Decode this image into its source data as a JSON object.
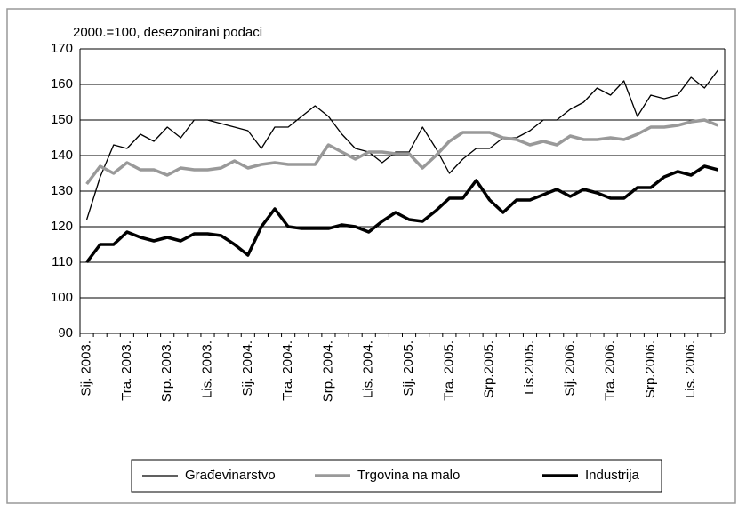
{
  "chart_data": {
    "type": "line",
    "subtitle": "2000.=100, desezonirani podaci",
    "categories": [
      "Sij. 2003.",
      null,
      null,
      "Tra. 2003.",
      null,
      null,
      "Srp. 2003.",
      null,
      null,
      "Lis. 2003.",
      null,
      null,
      "Sij. 2004.",
      null,
      null,
      "Tra. 2004.",
      null,
      null,
      "Srp. 2004.",
      null,
      null,
      "Lis. 2004.",
      null,
      null,
      "Sij. 2005.",
      null,
      null,
      "Tra. 2005.",
      null,
      null,
      "Srp.2005.",
      null,
      null,
      "Lis.2005.",
      null,
      null,
      "Sij. 2006.",
      null,
      null,
      "Tra. 2006.",
      null,
      null,
      "Srp.2006.",
      null,
      null,
      "Lis. 2006.",
      null,
      null
    ],
    "series": [
      {
        "name": "Građevinarstvo",
        "color": "#000000",
        "width": 1.3,
        "values": [
          122,
          134,
          143,
          142,
          146,
          144,
          148,
          145,
          150,
          150,
          149,
          148,
          147,
          142,
          148,
          148,
          151,
          154,
          151,
          146,
          142,
          141,
          138,
          141,
          141,
          148,
          142,
          135,
          139,
          142,
          142,
          145,
          145,
          147,
          150,
          150,
          153,
          155,
          159,
          157,
          161,
          151,
          157,
          156,
          157,
          162,
          159,
          164
        ]
      },
      {
        "name": "Trgovina na malo",
        "color": "#999999",
        "width": 3.5,
        "values": [
          132,
          137,
          135,
          138,
          136,
          136,
          134.5,
          136.5,
          136,
          136,
          136.5,
          138.5,
          136.5,
          137.5,
          138,
          137.5,
          137.5,
          137.5,
          143,
          141,
          139,
          141,
          141,
          140.5,
          140.5,
          136.5,
          140,
          144,
          146.5,
          146.5,
          146.5,
          145,
          144.5,
          143,
          144,
          143,
          145.5,
          144.5,
          144.5,
          145,
          144.5,
          146,
          148,
          148,
          148.5,
          149.5,
          150,
          148.5
        ]
      },
      {
        "name": "Industrija",
        "color": "#000000",
        "width": 3.5,
        "values": [
          110,
          115,
          115,
          118.5,
          117,
          116,
          117,
          116,
          118,
          118,
          117.5,
          115,
          112,
          120,
          125,
          120,
          119.5,
          119.5,
          119.5,
          120.5,
          120,
          118.5,
          121.5,
          124,
          122,
          121.5,
          124.5,
          128,
          128,
          133,
          127.5,
          124,
          127.5,
          127.5,
          129,
          130.5,
          128.5,
          130.5,
          129.5,
          128,
          128,
          131,
          131,
          134,
          135.5,
          134.5,
          137,
          136
        ]
      }
    ],
    "ylim": [
      90,
      170
    ],
    "yticks": [
      90,
      100,
      110,
      120,
      130,
      140,
      150,
      160,
      170
    ],
    "grid": true,
    "legend": "bottom"
  }
}
